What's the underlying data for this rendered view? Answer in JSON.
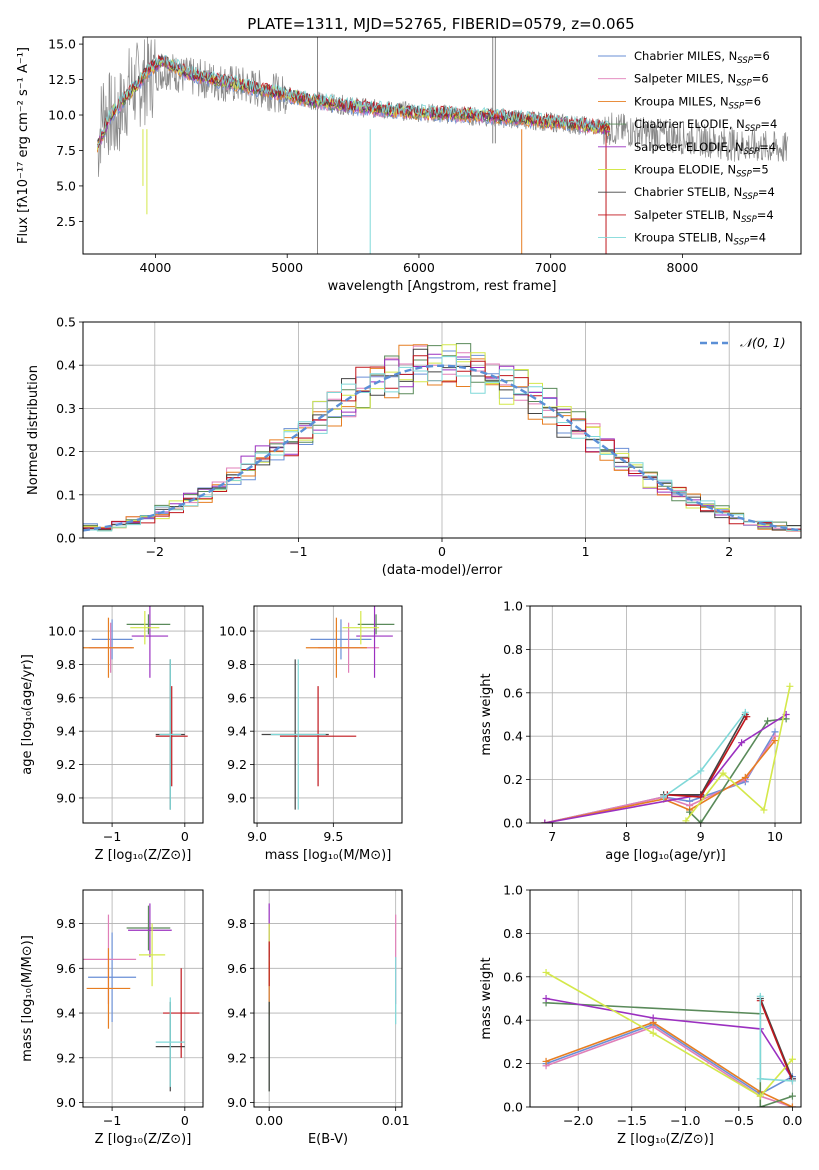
{
  "title": "PLATE=1311, MJD=52765, FIBERID=0579, z=0.065",
  "series": [
    {
      "name": "Chabrier MILES",
      "n": "6",
      "color": "#6a8fd6"
    },
    {
      "name": "Salpeter MILES",
      "n": "6",
      "color": "#e07fb8"
    },
    {
      "name": "Kroupa MILES",
      "n": "6",
      "color": "#e67e22"
    },
    {
      "name": "Chabrier ELODIE",
      "n": "4",
      "color": "#5a8a5a"
    },
    {
      "name": "Salpeter ELODIE",
      "n": "4",
      "color": "#9b30c0"
    },
    {
      "name": "Kroupa ELODIE",
      "n": "5",
      "color": "#d4e84a"
    },
    {
      "name": "Chabrier STELIB",
      "n": "4",
      "color": "#444444"
    },
    {
      "name": "Salpeter STELIB",
      "n": "4",
      "color": "#c0161c"
    },
    {
      "name": "Kroupa STELIB",
      "n": "4",
      "color": "#7fd8d8"
    }
  ],
  "chart_data": [
    {
      "id": "spectrum",
      "type": "line",
      "xlabel": "wavelength [Angstrom, rest frame]",
      "ylabel": "Flux [fλ10⁻¹⁷ erg cm⁻² s⁻¹ A⁻¹]",
      "xlim": [
        3450,
        8900
      ],
      "ylim": [
        0.2,
        15.5
      ],
      "xticks": [
        4000,
        5000,
        6000,
        7000,
        8000
      ],
      "yticks": [
        2.5,
        5.0,
        7.5,
        10.0,
        12.5,
        15.0
      ],
      "data_color": "#888888",
      "data_points": [
        [
          3560,
          7.5
        ],
        [
          3600,
          10.5
        ],
        [
          3700,
          9.5
        ],
        [
          3800,
          11.8
        ],
        [
          3900,
          12.3
        ],
        [
          4000,
          13.0
        ],
        [
          4100,
          13.2
        ],
        [
          4200,
          12.8
        ],
        [
          4300,
          12.6
        ],
        [
          4400,
          12.5
        ],
        [
          4500,
          12.3
        ],
        [
          4700,
          12.0
        ],
        [
          4900,
          11.6
        ],
        [
          5100,
          11.2
        ],
        [
          5300,
          10.9
        ],
        [
          5500,
          10.6
        ],
        [
          5700,
          10.4
        ],
        [
          6000,
          10.2
        ],
        [
          6300,
          10.0
        ],
        [
          6600,
          9.8
        ],
        [
          6900,
          9.6
        ],
        [
          7200,
          9.3
        ],
        [
          7500,
          9.0
        ],
        [
          7800,
          8.6
        ],
        [
          8100,
          8.3
        ],
        [
          8400,
          7.9
        ],
        [
          8800,
          7.6
        ]
      ],
      "model_points": [
        [
          3560,
          7.8
        ],
        [
          3650,
          9.8
        ],
        [
          3750,
          11.0
        ],
        [
          3850,
          12.0
        ],
        [
          3950,
          13.2
        ],
        [
          4050,
          13.8
        ],
        [
          4150,
          13.4
        ],
        [
          4250,
          12.9
        ],
        [
          4400,
          12.6
        ],
        [
          4600,
          12.2
        ],
        [
          4800,
          11.8
        ],
        [
          5000,
          11.4
        ],
        [
          5200,
          11.0
        ],
        [
          5400,
          10.7
        ],
        [
          5600,
          10.5
        ],
        [
          5800,
          10.3
        ],
        [
          6100,
          10.1
        ],
        [
          6400,
          10.0
        ],
        [
          6700,
          9.8
        ],
        [
          7000,
          9.5
        ],
        [
          7300,
          9.2
        ],
        [
          7450,
          9.0
        ]
      ]
    },
    {
      "id": "residuals",
      "type": "histogram",
      "xlabel": "(data-model)/error",
      "ylabel": "Normed distribution",
      "xlim": [
        -2.5,
        2.5
      ],
      "ylim": [
        0,
        0.5
      ],
      "xticks": [
        -2,
        -1,
        0,
        1,
        2
      ],
      "yticks": [
        0.0,
        0.1,
        0.2,
        0.3,
        0.4,
        0.5
      ],
      "legend": "𝒩(0, 1)",
      "bin_width": 0.1
    },
    {
      "id": "age_vs_Z",
      "type": "errorbar",
      "xlabel": "Z [log₁₀(Z/Z⊙)]",
      "ylabel": "age  [log₁₀(age/yr)]",
      "xlim": [
        -1.4,
        0.25
      ],
      "ylim": [
        8.85,
        10.15
      ],
      "xticks": [
        -1,
        0
      ],
      "yticks": [
        9.0,
        9.2,
        9.4,
        9.6,
        9.8,
        10.0
      ],
      "points": [
        {
          "s": 0,
          "x": -1.0,
          "xe": 0.28,
          "y": 9.95,
          "ye": 0.12
        },
        {
          "s": 1,
          "x": -1.02,
          "xe": 0.3,
          "y": 9.9,
          "ye": 0.15
        },
        {
          "s": 2,
          "x": -1.05,
          "xe": 0.35,
          "y": 9.9,
          "ye": 0.18
        },
        {
          "s": 3,
          "x": -0.5,
          "xe": 0.3,
          "y": 10.04,
          "ye": 0.06
        },
        {
          "s": 4,
          "x": -0.48,
          "xe": 0.25,
          "y": 9.97,
          "ye": 0.25
        },
        {
          "s": 5,
          "x": -0.55,
          "xe": 0.2,
          "y": 10.02,
          "ye": 0.1
        },
        {
          "s": 6,
          "x": -0.2,
          "xe": 0.2,
          "y": 9.38,
          "ye": 0.45
        },
        {
          "s": 7,
          "x": -0.18,
          "xe": 0.22,
          "y": 9.37,
          "ye": 0.3
        },
        {
          "s": 8,
          "x": -0.2,
          "xe": 0.15,
          "y": 9.38,
          "ye": 0.45
        }
      ]
    },
    {
      "id": "age_vs_mass",
      "type": "errorbar",
      "xlabel": "mass [log₁₀(M/M⊙)]",
      "ylabel": "",
      "xlim": [
        8.98,
        9.95
      ],
      "ylim": [
        8.85,
        10.15
      ],
      "xticks": [
        9.0,
        9.5
      ],
      "yticks": [
        9.0,
        9.2,
        9.4,
        9.6,
        9.8,
        10.0
      ],
      "points": [
        {
          "s": 0,
          "x": 9.55,
          "xe": 0.2,
          "y": 9.95,
          "ye": 0.12
        },
        {
          "s": 1,
          "x": 9.6,
          "xe": 0.2,
          "y": 9.9,
          "ye": 0.15
        },
        {
          "s": 2,
          "x": 9.52,
          "xe": 0.2,
          "y": 9.9,
          "ye": 0.18
        },
        {
          "s": 3,
          "x": 9.78,
          "xe": 0.12,
          "y": 10.04,
          "ye": 0.06
        },
        {
          "s": 4,
          "x": 9.77,
          "xe": 0.12,
          "y": 9.97,
          "ye": 0.25
        },
        {
          "s": 5,
          "x": 9.68,
          "xe": 0.12,
          "y": 10.02,
          "ye": 0.1
        },
        {
          "s": 6,
          "x": 9.25,
          "xe": 0.22,
          "y": 9.38,
          "ye": 0.45
        },
        {
          "s": 7,
          "x": 9.4,
          "xe": 0.25,
          "y": 9.37,
          "ye": 0.3
        },
        {
          "s": 8,
          "x": 9.27,
          "xe": 0.18,
          "y": 9.38,
          "ye": 0.45
        }
      ]
    },
    {
      "id": "massweight_vs_age",
      "type": "line",
      "xlabel": "age  [log₁₀(age/yr)]",
      "ylabel": "mass weight",
      "xlim": [
        6.7,
        10.35
      ],
      "ylim": [
        0,
        1
      ],
      "xticks": [
        7,
        8,
        9,
        10
      ],
      "yticks": [
        0.0,
        0.2,
        0.4,
        0.6,
        0.8,
        1.0
      ],
      "lines": [
        {
          "s": 0,
          "pts": [
            [
              6.9,
              0.0
            ],
            [
              8.5,
              0.12
            ],
            [
              8.85,
              0.1
            ],
            [
              9.6,
              0.19
            ],
            [
              10.0,
              0.42
            ]
          ]
        },
        {
          "s": 1,
          "pts": [
            [
              6.9,
              0.0
            ],
            [
              8.5,
              0.12
            ],
            [
              8.85,
              0.08
            ],
            [
              9.6,
              0.2
            ],
            [
              10.0,
              0.4
            ]
          ]
        },
        {
          "s": 2,
          "pts": [
            [
              6.9,
              0.0
            ],
            [
              8.5,
              0.11
            ],
            [
              8.85,
              0.06
            ],
            [
              9.6,
              0.21
            ],
            [
              10.0,
              0.38
            ]
          ]
        },
        {
          "s": 3,
          "pts": [
            [
              8.85,
              0.05
            ],
            [
              9.0,
              0.0
            ],
            [
              9.9,
              0.47
            ],
            [
              10.15,
              0.48
            ]
          ]
        },
        {
          "s": 4,
          "pts": [
            [
              6.9,
              0.0
            ],
            [
              9.0,
              0.13
            ],
            [
              9.55,
              0.37
            ],
            [
              10.15,
              0.5
            ]
          ]
        },
        {
          "s": 5,
          "pts": [
            [
              8.8,
              0.01
            ],
            [
              9.3,
              0.23
            ],
            [
              9.85,
              0.06
            ],
            [
              10.2,
              0.63
            ]
          ]
        },
        {
          "s": 6,
          "pts": [
            [
              8.5,
              0.13
            ],
            [
              9.0,
              0.13
            ],
            [
              9.6,
              0.5
            ]
          ]
        },
        {
          "s": 7,
          "pts": [
            [
              8.55,
              0.13
            ],
            [
              9.0,
              0.12
            ],
            [
              9.62,
              0.49
            ]
          ]
        },
        {
          "s": 8,
          "pts": [
            [
              8.5,
              0.12
            ],
            [
              9.0,
              0.24
            ],
            [
              9.6,
              0.51
            ]
          ]
        }
      ]
    },
    {
      "id": "mass_vs_Z",
      "type": "errorbar",
      "xlabel": "Z [log₁₀(Z/Z⊙)]",
      "ylabel": "mass [log₁₀(M/M⊙)]",
      "xlim": [
        -1.4,
        0.25
      ],
      "ylim": [
        8.98,
        9.95
      ],
      "xticks": [
        -1,
        0
      ],
      "yticks": [
        9.0,
        9.2,
        9.4,
        9.6,
        9.8
      ],
      "points": [
        {
          "s": 0,
          "x": -1.0,
          "xe": 0.33,
          "y": 9.56,
          "ye": 0.2
        },
        {
          "s": 1,
          "x": -1.05,
          "xe": 0.38,
          "y": 9.64,
          "ye": 0.2
        },
        {
          "s": 2,
          "x": -1.05,
          "xe": 0.3,
          "y": 9.51,
          "ye": 0.18
        },
        {
          "s": 3,
          "x": -0.5,
          "xe": 0.3,
          "y": 9.78,
          "ye": 0.1
        },
        {
          "s": 4,
          "x": -0.48,
          "xe": 0.3,
          "y": 9.77,
          "ye": 0.12
        },
        {
          "s": 5,
          "x": -0.45,
          "xe": 0.18,
          "y": 9.66,
          "ye": 0.14
        },
        {
          "s": 6,
          "x": -0.2,
          "xe": 0.2,
          "y": 9.25,
          "ye": 0.2
        },
        {
          "s": 7,
          "x": -0.05,
          "xe": 0.25,
          "y": 9.4,
          "ye": 0.2
        },
        {
          "s": 8,
          "x": -0.2,
          "xe": 0.2,
          "y": 9.27,
          "ye": 0.2
        }
      ]
    },
    {
      "id": "mass_vs_EBV",
      "type": "errorbar",
      "xlabel": "E(B-V)",
      "ylabel": "",
      "xlim": [
        -0.0012,
        0.0105
      ],
      "ylim": [
        8.98,
        9.95
      ],
      "xticks": [
        0.0,
        0.01
      ],
      "yticks": [
        9.0,
        9.2,
        9.4,
        9.6,
        9.8
      ],
      "points": [
        {
          "s": 0,
          "x": 0.0,
          "xe": 0.0,
          "y": 9.56,
          "ye": 0.12
        },
        {
          "s": 1,
          "x": 0.01,
          "xe": 0.0,
          "y": 9.64,
          "ye": 0.2
        },
        {
          "s": 2,
          "x": 0.0,
          "xe": 0.0,
          "y": 9.51,
          "ye": 0.12
        },
        {
          "s": 3,
          "x": 0.0,
          "xe": 0.0,
          "y": 9.25,
          "ye": 0.2
        },
        {
          "s": 4,
          "x": 0.0,
          "xe": 0.0,
          "y": 9.77,
          "ye": 0.12
        },
        {
          "s": 5,
          "x": 0.0,
          "xe": 0.0,
          "y": 9.66,
          "ye": 0.14
        },
        {
          "s": 6,
          "x": 0.0,
          "xe": 0.0,
          "y": 9.25,
          "ye": 0.2
        },
        {
          "s": 7,
          "x": 0.0,
          "xe": 0.0,
          "y": 9.62,
          "ye": 0.1
        },
        {
          "s": 8,
          "x": 0.01,
          "xe": 0.0,
          "y": 9.5,
          "ye": 0.15
        }
      ]
    },
    {
      "id": "massweight_vs_Z",
      "type": "line",
      "xlabel": "Z [log₁₀(Z/Z⊙)]",
      "ylabel": "mass weight",
      "xlim": [
        -2.45,
        0.08
      ],
      "ylim": [
        0,
        1
      ],
      "xticks": [
        -2.0,
        -1.5,
        -1.0,
        -0.5,
        0.0
      ],
      "yticks": [
        0.0,
        0.2,
        0.4,
        0.6,
        0.8,
        1.0
      ],
      "lines": [
        {
          "s": 0,
          "pts": [
            [
              -2.3,
              0.2
            ],
            [
              -1.3,
              0.38
            ],
            [
              -0.3,
              0.06
            ],
            [
              0.0,
              0.14
            ]
          ]
        },
        {
          "s": 1,
          "pts": [
            [
              -2.3,
              0.19
            ],
            [
              -1.3,
              0.37
            ],
            [
              -0.3,
              0.05
            ],
            [
              0.0,
              0.0
            ]
          ]
        },
        {
          "s": 2,
          "pts": [
            [
              -2.3,
              0.21
            ],
            [
              -1.3,
              0.39
            ],
            [
              -0.3,
              0.07
            ],
            [
              0.0,
              0.0
            ]
          ]
        },
        {
          "s": 3,
          "pts": [
            [
              -2.3,
              0.48
            ],
            [
              -0.3,
              0.43
            ],
            [
              -0.3,
              0.0
            ],
            [
              0.0,
              0.05
            ]
          ]
        },
        {
          "s": 4,
          "pts": [
            [
              -2.3,
              0.5
            ],
            [
              -1.3,
              0.41
            ],
            [
              -0.3,
              0.36
            ],
            [
              0.0,
              0.13
            ]
          ]
        },
        {
          "s": 5,
          "pts": [
            [
              -2.3,
              0.62
            ],
            [
              -1.3,
              0.34
            ],
            [
              -0.3,
              0.05
            ],
            [
              0.0,
              0.22
            ]
          ]
        },
        {
          "s": 6,
          "pts": [
            [
              -0.3,
              0.5
            ],
            [
              0.0,
              0.13
            ]
          ]
        },
        {
          "s": 7,
          "pts": [
            [
              -0.3,
              0.49
            ],
            [
              0.0,
              0.12
            ]
          ]
        },
        {
          "s": 8,
          "pts": [
            [
              -0.3,
              0.51
            ],
            [
              -0.3,
              0.13
            ],
            [
              0.0,
              0.12
            ]
          ]
        }
      ]
    }
  ]
}
